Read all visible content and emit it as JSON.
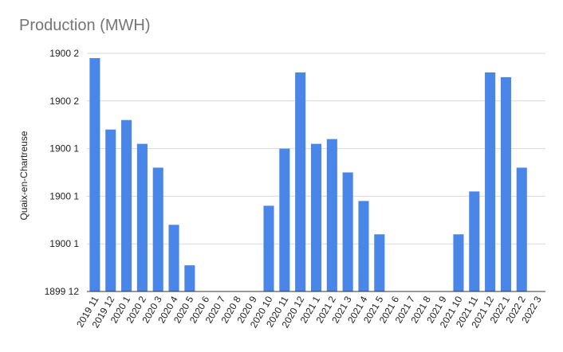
{
  "chart_data": {
    "type": "bar",
    "title": "Production (MWH)",
    "xlabel": "",
    "ylabel": "Quaix-en-Chartreuse",
    "ylim": [
      0,
      5
    ],
    "y_tick_values": [
      0,
      1,
      2,
      3,
      4,
      5
    ],
    "y_tick_labels": [
      "1899 12",
      "1900 1",
      "1900 1",
      "1900 1",
      "1900 2",
      "1900 2"
    ],
    "grid": true,
    "legend": "none",
    "bar_color": "#4a86e8",
    "categories": [
      "2019 11",
      "2019 12",
      "2020 1",
      "2020 2",
      "2020 3",
      "2020 4",
      "2020 5",
      "2020 6",
      "2020 7",
      "2020 8",
      "2020 9",
      "2020 10",
      "2020 11",
      "2020 12",
      "2021 1",
      "2021 2",
      "2021 3",
      "2021 4",
      "2021 5",
      "2021 6",
      "2021 7",
      "2021 8",
      "2021 9",
      "2021 10",
      "2021 11",
      "2021 12",
      "2022 1",
      "2022 2",
      "2022 3"
    ],
    "values": [
      4.9,
      3.4,
      3.6,
      3.1,
      2.6,
      1.4,
      0.55,
      0,
      0,
      0,
      0,
      1.8,
      3.0,
      4.6,
      3.1,
      3.2,
      2.5,
      1.9,
      1.2,
      0,
      0,
      0,
      0,
      1.2,
      2.1,
      4.6,
      4.5,
      2.6,
      0
    ]
  }
}
